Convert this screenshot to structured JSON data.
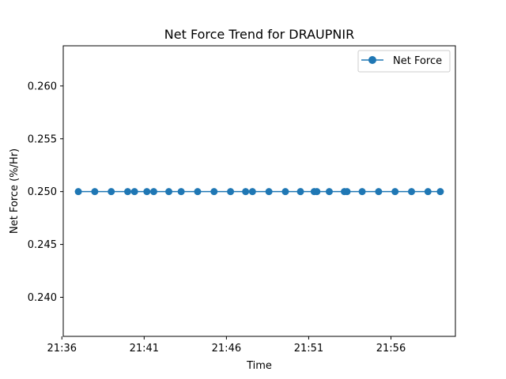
{
  "chart_data": {
    "type": "line",
    "title": "Net Force Trend for DRAUPNIR",
    "xlabel": "Time",
    "ylabel": "Net Force (%/Hr)",
    "x_tick_labels": [
      "21:36",
      "21:41",
      "21:46",
      "21:51",
      "21:56"
    ],
    "y_tick_labels": [
      "0.240",
      "0.245",
      "0.250",
      "0.255",
      "0.260"
    ],
    "y_ticks": [
      0.24,
      0.245,
      0.25,
      0.255,
      0.26
    ],
    "ylim": [
      0.2363,
      0.2638
    ],
    "xlim": [
      "21:36:05",
      "21:59:55"
    ],
    "legend_position": "top-right",
    "series": [
      {
        "name": "Net Force",
        "color": "#1f77b4",
        "marker": "circle",
        "points": [
          {
            "x": "21:37:00",
            "y": 0.25
          },
          {
            "x": "21:38:00",
            "y": 0.25
          },
          {
            "x": "21:39:00",
            "y": 0.25
          },
          {
            "x": "21:40:00",
            "y": 0.25
          },
          {
            "x": "21:40:25",
            "y": 0.25
          },
          {
            "x": "21:41:10",
            "y": 0.25
          },
          {
            "x": "21:41:35",
            "y": 0.25
          },
          {
            "x": "21:42:30",
            "y": 0.25
          },
          {
            "x": "21:43:15",
            "y": 0.25
          },
          {
            "x": "21:44:15",
            "y": 0.25
          },
          {
            "x": "21:45:15",
            "y": 0.25
          },
          {
            "x": "21:46:15",
            "y": 0.25
          },
          {
            "x": "21:47:10",
            "y": 0.25
          },
          {
            "x": "21:47:35",
            "y": 0.25
          },
          {
            "x": "21:48:35",
            "y": 0.25
          },
          {
            "x": "21:49:35",
            "y": 0.25
          },
          {
            "x": "21:50:30",
            "y": 0.25
          },
          {
            "x": "21:51:20",
            "y": 0.25
          },
          {
            "x": "21:51:30",
            "y": 0.25
          },
          {
            "x": "21:52:15",
            "y": 0.25
          },
          {
            "x": "21:53:10",
            "y": 0.25
          },
          {
            "x": "21:53:20",
            "y": 0.25
          },
          {
            "x": "21:54:15",
            "y": 0.25
          },
          {
            "x": "21:55:15",
            "y": 0.25
          },
          {
            "x": "21:56:15",
            "y": 0.25
          },
          {
            "x": "21:57:15",
            "y": 0.25
          },
          {
            "x": "21:58:15",
            "y": 0.25
          },
          {
            "x": "21:59:00",
            "y": 0.25
          }
        ]
      }
    ]
  }
}
